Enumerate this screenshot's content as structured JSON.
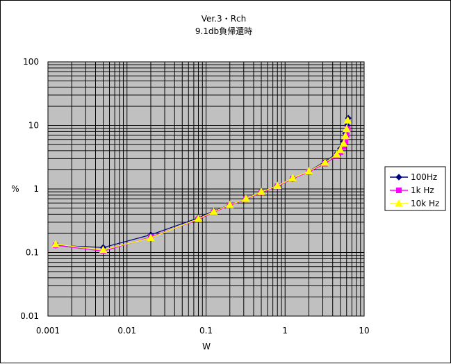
{
  "chart_data": {
    "type": "line",
    "title": "Ver.3・Rch",
    "subtitle": "9.1db負帰還時",
    "xlabel": "W",
    "ylabel": "%",
    "x_scale": "log",
    "y_scale": "log",
    "xlim": [
      0.001,
      10
    ],
    "ylim": [
      0.01,
      100
    ],
    "x_tick_labels": [
      "0.001",
      "0.01",
      "0.1",
      "1",
      "10"
    ],
    "y_tick_labels": [
      "0.01",
      "0.1",
      "1",
      "10",
      "100"
    ],
    "grid": true,
    "legend_position": "right",
    "plot_background": "#c0c0c0",
    "series": [
      {
        "name": "100Hz",
        "color": "#000080",
        "marker": "diamond",
        "x": [
          0.00125,
          0.005,
          0.02,
          0.08,
          0.125,
          0.2,
          0.32,
          0.5,
          0.8,
          1.25,
          2.0,
          3.2,
          4.5,
          5.0,
          5.5,
          5.8,
          6.1,
          6.3
        ],
        "y": [
          0.13,
          0.12,
          0.19,
          0.35,
          0.45,
          0.56,
          0.7,
          0.9,
          1.12,
          1.45,
          1.9,
          2.7,
          3.6,
          4.3,
          5.6,
          7.5,
          10.0,
          13.0
        ]
      },
      {
        "name": "1k Hz",
        "color": "#ff00ff",
        "marker": "square",
        "x": [
          0.00125,
          0.005,
          0.02,
          0.08,
          0.125,
          0.2,
          0.32,
          0.5,
          0.8,
          1.25,
          2.0,
          3.2,
          4.5,
          5.0,
          5.5,
          5.8,
          6.0,
          6.2
        ],
        "y": [
          0.13,
          0.105,
          0.175,
          0.33,
          0.43,
          0.55,
          0.69,
          0.88,
          1.1,
          1.45,
          1.85,
          2.5,
          3.3,
          3.8,
          4.6,
          5.6,
          7.0,
          8.8
        ]
      },
      {
        "name": "10k Hz",
        "color": "#ffff00",
        "marker": "triangle",
        "x": [
          0.00125,
          0.005,
          0.02,
          0.08,
          0.125,
          0.2,
          0.32,
          0.5,
          0.8,
          1.25,
          2.0,
          3.2,
          4.5,
          5.0,
          5.5,
          5.8,
          6.0,
          6.2
        ],
        "y": [
          0.135,
          0.11,
          0.17,
          0.34,
          0.44,
          0.56,
          0.7,
          0.9,
          1.12,
          1.48,
          1.9,
          2.6,
          3.5,
          4.1,
          5.2,
          6.8,
          8.8,
          12.0
        ]
      }
    ]
  }
}
